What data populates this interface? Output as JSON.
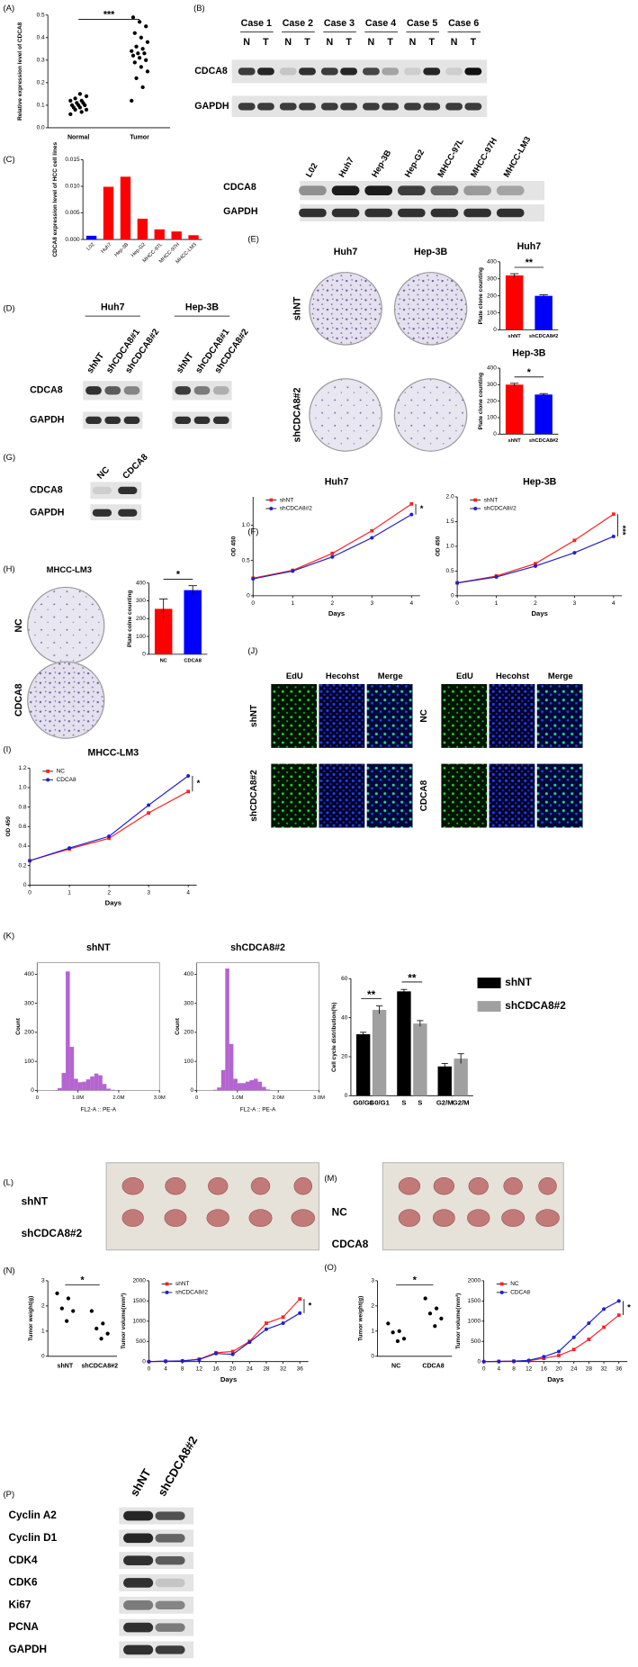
{
  "panel_labels": [
    "(A)",
    "(B)",
    "(C)",
    "(D)",
    "(E)",
    "(F)",
    "(G)",
    "(H)",
    "(I)",
    "(J)",
    "(K)",
    "(L)",
    "(M)",
    "(N)",
    "(O)",
    "(P)"
  ],
  "blot_B": {
    "cases": [
      "Case 1",
      "Case 2",
      "Case 3",
      "Case 4",
      "Case 5",
      "Case 6"
    ],
    "lanes": [
      "N",
      "T"
    ],
    "rows": [
      "CDCA8",
      "GAPDH"
    ]
  },
  "blot_C": {
    "lanes": [
      "L02",
      "Huh7",
      "Hep-3B",
      "Hep-G2",
      "MHCC-97L",
      "MHCC-97H",
      "MHCC-LM3"
    ],
    "rows": [
      "CDCA8",
      "GAPDH"
    ]
  },
  "blot_D": {
    "groups": [
      "Huh7",
      "Hep-3B"
    ],
    "lanes": [
      "shNT",
      "shCDCA8#1",
      "shCDCA8#2"
    ],
    "rows": [
      "CDCA8",
      "GAPDH"
    ]
  },
  "blot_G": {
    "lanes": [
      "NC",
      "CDCA8"
    ],
    "rows": [
      "CDCA8",
      "GAPDH"
    ]
  },
  "images_E": {
    "columns": [
      "Huh7",
      "Hep-3B"
    ],
    "rows": [
      "shNT",
      "shCDCA8#2"
    ]
  },
  "images_H": {
    "title": "MHCC-LM3",
    "rows": [
      "NC",
      "CDCA8"
    ]
  },
  "images_J": [
    {
      "columns": [
        "EdU",
        "Hecohst",
        "Merge"
      ],
      "rows": [
        "shNT",
        "shCDCA8#2"
      ]
    },
    {
      "columns": [
        "EdU",
        "Hecohst",
        "Merge"
      ],
      "rows": [
        "NC",
        "CDCA8"
      ]
    }
  ],
  "images_L": {
    "rows": [
      "shNT",
      "shCDCA8#2"
    ]
  },
  "images_M": {
    "rows": [
      "NC",
      "CDCA8"
    ]
  },
  "blot_P": {
    "lanes": [
      "shNT",
      "shCDCA8#2"
    ],
    "rows": [
      "Cyclin A2",
      "Cyclin D1",
      "CDK4",
      "CDK6",
      "Ki67",
      "PCNA",
      "GAPDH"
    ]
  },
  "chart_data": [
    {
      "type": "dot",
      "ylabel": "Relative expression level of CDCA8",
      "categories": [
        "Normal",
        "Tumor"
      ],
      "color": "#000000",
      "points": [
        [
          0.06,
          0.07,
          0.08,
          0.08,
          0.09,
          0.09,
          0.1,
          0.1,
          0.1,
          0.11,
          0.11,
          0.12,
          0.12,
          0.13,
          0.14,
          0.15
        ],
        [
          0.12,
          0.18,
          0.22,
          0.25,
          0.27,
          0.29,
          0.3,
          0.31,
          0.32,
          0.33,
          0.33,
          0.34,
          0.35,
          0.36,
          0.38,
          0.4,
          0.42,
          0.45,
          0.47,
          0.49
        ]
      ],
      "ylim": [
        0,
        0.5
      ],
      "yticks": [
        {
          "value": 0,
          "label": "0.0"
        },
        0.1,
        0.2,
        0.3,
        0.4,
        0.5
      ],
      "significance": "***"
    },
    {
      "type": "bar",
      "ylabel": "CDCA8 expression level of HCC cell lines",
      "categories": [
        "L02",
        "Huh7",
        "Hep-3B",
        "Hep-G2",
        "MHCC-97L",
        "MHCC-97H",
        "MHCC-LM3"
      ],
      "values": [
        0.0007,
        0.0099,
        0.0118,
        0.0039,
        0.0019,
        0.0015,
        0.0008
      ],
      "colors": [
        "#0000ff",
        "#ff0000",
        "#ff0000",
        "#ff0000",
        "#ff0000",
        "#ff0000",
        "#ff0000"
      ],
      "ylim": [
        0,
        0.015
      ],
      "yticks": [
        {
          "value": 0,
          "label": "0.000"
        },
        0.005,
        {
          "value": 0.01,
          "label": "0.010"
        },
        0.015
      ]
    },
    {
      "type": "bar",
      "title": "Huh7",
      "ylabel": "Plate clone counting",
      "categories": [
        "shNT",
        "shCDCA8#2"
      ],
      "values": [
        320,
        200
      ],
      "errors": [
        10,
        6
      ],
      "colors": [
        "#ff0000",
        "#0000ff"
      ],
      "ylim": [
        0,
        400
      ],
      "yticks": [
        0,
        100,
        200,
        300,
        400
      ],
      "significance": "**"
    },
    {
      "type": "bar",
      "title": "Hep-3B",
      "ylabel": "Plate clone counting",
      "categories": [
        "shNT",
        "shCDCA8#2"
      ],
      "values": [
        300,
        240
      ],
      "errors": [
        8,
        6
      ],
      "colors": [
        "#ff0000",
        "#0000ff"
      ],
      "ylim": [
        0,
        400
      ],
      "yticks": [
        0,
        100,
        200,
        300,
        400
      ],
      "significance": "*"
    },
    {
      "type": "line",
      "title": "Huh7",
      "xlabel": "Days",
      "ylabel": "OD 450",
      "x": [
        0,
        1,
        2,
        3,
        4
      ],
      "xlim": [
        0,
        4
      ],
      "xticks": [
        0,
        1,
        2,
        3,
        4
      ],
      "ylim": [
        0,
        1.4
      ],
      "yticks": [
        0,
        0.5,
        {
          "value": 1,
          "label": "1.0"
        }
      ],
      "legend": "upper left",
      "significance": "*",
      "series": [
        {
          "name": "shNT",
          "color": "#ff2020",
          "values": [
            0.25,
            0.36,
            0.6,
            0.92,
            1.3
          ]
        },
        {
          "name": "shCDCA8#2",
          "color": "#2020d0",
          "values": [
            0.24,
            0.35,
            0.55,
            0.82,
            1.15
          ]
        }
      ]
    },
    {
      "type": "line",
      "title": "Hep-3B",
      "xlabel": "Days",
      "ylabel": "OD 450",
      "x": [
        0,
        1,
        2,
        3,
        4
      ],
      "xlim": [
        0,
        4
      ],
      "xticks": [
        0,
        1,
        2,
        3,
        4
      ],
      "ylim": [
        0,
        2
      ],
      "yticks": [
        0,
        0.5,
        {
          "value": 1,
          "label": "1.0"
        },
        1.5,
        {
          "value": 2,
          "label": "2.0"
        }
      ],
      "legend": "upper left",
      "significance": "***",
      "series": [
        {
          "name": "shNT",
          "color": "#ff2020",
          "values": [
            0.26,
            0.4,
            0.65,
            1.12,
            1.65
          ]
        },
        {
          "name": "shCDCA8#2",
          "color": "#2020d0",
          "values": [
            0.26,
            0.38,
            0.6,
            0.87,
            1.2
          ]
        }
      ]
    },
    {
      "type": "bar",
      "ylabel": "Plate colne counting",
      "categories": [
        "NC",
        "CDCA8"
      ],
      "values": [
        255,
        360
      ],
      "errors": [
        55,
        25
      ],
      "colors": [
        "#ff0000",
        "#0000ff"
      ],
      "ylim": [
        0,
        400
      ],
      "yticks": [
        0,
        100,
        200,
        300,
        400
      ],
      "significance": "*"
    },
    {
      "type": "line",
      "title": "MHCC-LM3",
      "xlabel": "Days",
      "ylabel": "OD 450",
      "x": [
        0,
        1,
        2,
        3,
        4
      ],
      "xlim": [
        0,
        4
      ],
      "xticks": [
        0,
        1,
        2,
        3,
        4
      ],
      "ylim": [
        0,
        1.2
      ],
      "yticks": [
        0,
        0.2,
        0.4,
        0.6,
        0.8,
        {
          "value": 1,
          "label": "1.0"
        },
        1.2
      ],
      "legend": "upper left",
      "significance": "*",
      "series": [
        {
          "name": "NC",
          "color": "#ff2020",
          "values": [
            0.25,
            0.37,
            0.48,
            0.74,
            0.96
          ]
        },
        {
          "name": "CDCA8",
          "color": "#2020d0",
          "values": [
            0.25,
            0.38,
            0.5,
            0.82,
            1.12
          ]
        }
      ]
    },
    {
      "type": "grouped-bar",
      "ylabel": "Cell cycle distribution(%)",
      "categories": [
        "G0/G1",
        "S",
        "G2/M"
      ],
      "ylim": [
        0,
        60
      ],
      "yticks": [
        0,
        20,
        40,
        60
      ],
      "significance": [
        "**",
        "**"
      ],
      "series": [
        {
          "name": "shNT",
          "color": "#000000",
          "values": [
            31.5,
            53.5,
            15
          ],
          "errors": [
            1,
            1,
            1.5
          ]
        },
        {
          "name": "shCDCA8#2",
          "color": "#a0a0a0",
          "values": [
            44,
            37,
            19
          ],
          "errors": [
            2,
            1.5,
            2.5
          ]
        }
      ]
    },
    {
      "type": "dot",
      "ylabel": "Tumor weight(g)",
      "categories": [
        "shNT",
        "shCDCA8#2"
      ],
      "color": "#000000",
      "points": [
        [
          2.5,
          2.3,
          1.9,
          1.8,
          1.4
        ],
        [
          1.8,
          1.3,
          1.1,
          0.9,
          0.7
        ]
      ],
      "ylim": [
        0,
        3
      ],
      "yticks": [
        0,
        1,
        2,
        3
      ],
      "significance": "*"
    },
    {
      "type": "line",
      "xlabel": "Days",
      "ylabel": "Tumor volume(mm³)",
      "x": [
        0,
        4,
        8,
        12,
        16,
        20,
        24,
        28,
        32,
        36
      ],
      "xlim": [
        0,
        36
      ],
      "xticks": [
        0,
        4,
        8,
        12,
        16,
        20,
        24,
        28,
        32,
        36
      ],
      "ylim": [
        0,
        2000
      ],
      "yticks": [
        0,
        500,
        1000,
        1500,
        2000
      ],
      "legend": "upper left",
      "significance": "*",
      "series": [
        {
          "name": "shNT",
          "color": "#ff2020",
          "values": [
            0,
            10,
            20,
            60,
            220,
            250,
            500,
            950,
            1100,
            1550
          ]
        },
        {
          "name": "shCDCA8#2",
          "color": "#2020d0",
          "values": [
            0,
            10,
            15,
            50,
            200,
            180,
            480,
            800,
            950,
            1200
          ]
        }
      ]
    },
    {
      "type": "dot",
      "ylabel": "Tumor weight(g)",
      "categories": [
        "NC",
        "CDCA8"
      ],
      "color": "#000000",
      "points": [
        [
          1.3,
          1,
          0.95,
          0.7,
          0.6
        ],
        [
          2.3,
          1.9,
          1.7,
          1.5,
          1.2
        ]
      ],
      "ylim": [
        0,
        3
      ],
      "yticks": [
        0,
        1,
        2,
        3
      ],
      "significance": "*"
    },
    {
      "type": "line",
      "xlabel": "Days",
      "ylabel": "Tumor volume(mm³)",
      "x": [
        0,
        4,
        8,
        12,
        16,
        20,
        24,
        28,
        32,
        36
      ],
      "xlim": [
        0,
        36
      ],
      "xticks": [
        0,
        4,
        8,
        12,
        16,
        20,
        24,
        28,
        32,
        36
      ],
      "ylim": [
        0,
        2000
      ],
      "yticks": [
        0,
        500,
        1000,
        1500,
        2000
      ],
      "legend": "upper left",
      "significance": "*",
      "series": [
        {
          "name": "NC",
          "color": "#ff2020",
          "values": [
            0,
            5,
            10,
            20,
            80,
            150,
            300,
            550,
            850,
            1150
          ]
        },
        {
          "name": "CDCA8",
          "color": "#2020d0",
          "values": [
            0,
            5,
            10,
            30,
            120,
            250,
            600,
            950,
            1300,
            1500
          ]
        }
      ]
    },
    {
      "type": "histogram",
      "title": "shNT",
      "xlabel": "FL2-A :: PE-A",
      "ylabel": "Count",
      "color": "#9b30c0",
      "bins": [
        0,
        100000,
        200000,
        300000,
        400000,
        500000,
        600000,
        700000,
        800000,
        900000,
        1000000,
        1100000,
        1200000,
        1300000,
        1400000,
        1500000,
        1600000,
        1700000,
        1800000,
        1900000,
        2000000,
        2100000,
        2200000,
        2300000,
        2400000,
        2500000,
        2600000,
        2700000,
        2800000,
        2900000,
        3000000
      ],
      "counts": [
        0,
        0,
        0,
        0,
        1,
        8,
        60,
        410,
        150,
        40,
        28,
        30,
        38,
        48,
        58,
        52,
        22,
        6,
        2,
        1,
        0,
        0,
        0,
        0,
        0,
        0,
        0,
        0,
        0,
        0
      ],
      "xlim": [
        0,
        3000000
      ],
      "xticks": [
        0,
        {
          "value": 1000000,
          "label": "1.0M"
        },
        {
          "value": 2000000,
          "label": "2.0M"
        },
        {
          "value": 3000000,
          "label": "3.0M"
        }
      ],
      "ylim": [
        0,
        440
      ],
      "yticks": [
        0,
        100,
        200,
        300,
        400
      ]
    },
    {
      "type": "histogram",
      "title": "shCDCA8#2",
      "xlabel": "FL2-A :: PE-A",
      "ylabel": "Count",
      "color": "#9b30c0",
      "bins": [
        0,
        100000,
        200000,
        300000,
        400000,
        500000,
        600000,
        700000,
        800000,
        900000,
        1000000,
        1100000,
        1200000,
        1300000,
        1400000,
        1500000,
        1600000,
        1700000,
        1800000,
        1900000,
        2000000,
        2100000,
        2200000,
        2300000,
        2400000,
        2500000,
        2600000,
        2700000,
        2800000,
        2900000,
        3000000
      ],
      "counts": [
        0,
        0,
        0,
        0,
        2,
        10,
        70,
        420,
        160,
        40,
        25,
        25,
        30,
        35,
        40,
        30,
        12,
        3,
        1,
        0,
        0,
        0,
        0,
        0,
        0,
        0,
        0,
        0,
        0,
        0
      ],
      "xlim": [
        0,
        3000000
      ],
      "xticks": [
        0,
        {
          "value": 1000000,
          "label": "1.0M"
        },
        {
          "value": 2000000,
          "label": "2.0M"
        },
        {
          "value": 3000000,
          "label": "3.0M"
        }
      ],
      "ylim": [
        0,
        440
      ],
      "yticks": [
        0,
        100,
        200,
        300,
        400
      ]
    }
  ]
}
